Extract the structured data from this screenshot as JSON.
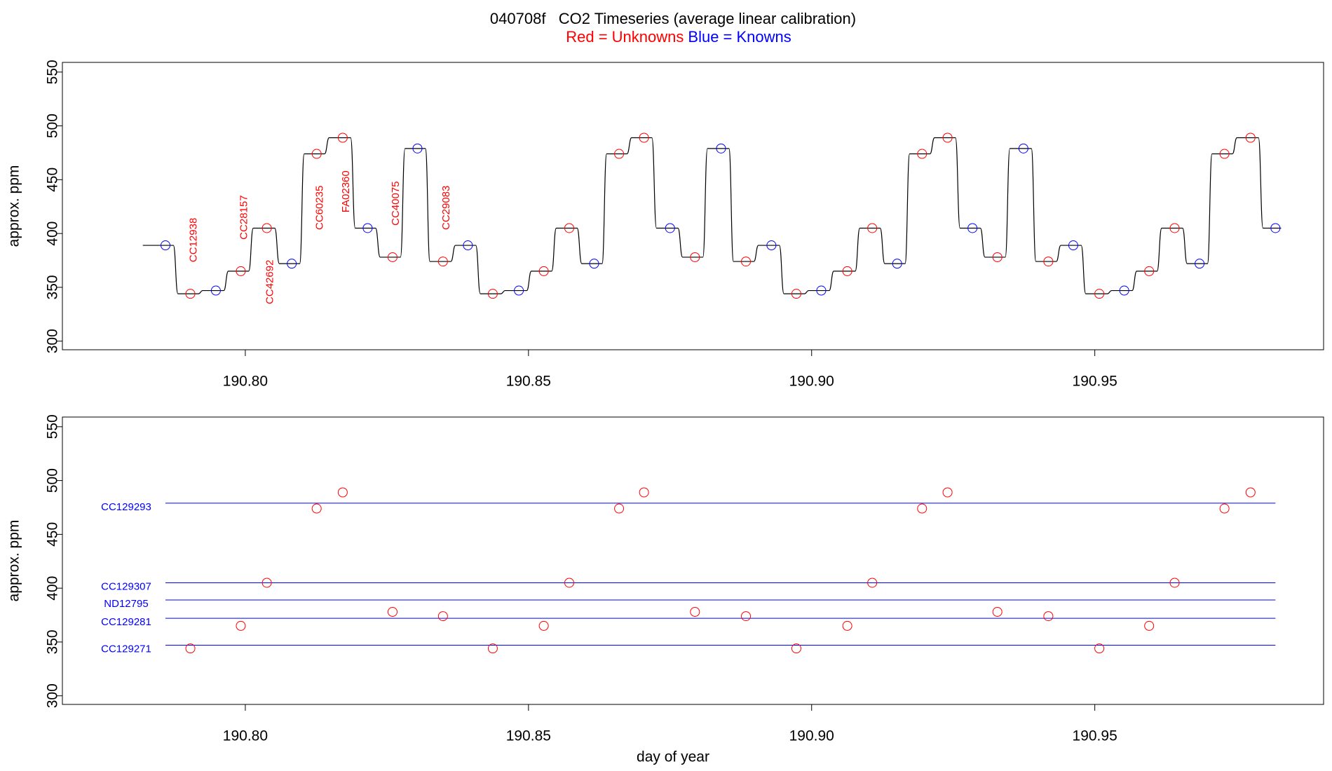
{
  "chart_data": [
    {
      "type": "line",
      "title": "040708f   CO2 Timeseries (average linear calibration)",
      "subtitle": [
        {
          "text": "Red = Unknowns",
          "color": "#ff0000"
        },
        {
          "text": "Blue = Knowns",
          "color": "#0000ff"
        }
      ],
      "y_label": "approx. ppm",
      "xlim": [
        190.7677,
        190.9904
      ],
      "ylim": [
        292,
        559
      ],
      "xticks": [
        {
          "value": 190.8,
          "label": "190.80"
        },
        190.85,
        {
          "value": 190.9,
          "label": "190.90"
        },
        190.95
      ],
      "yticks": [
        300,
        350,
        400,
        450,
        500,
        550
      ],
      "series": [
        {
          "mode": "line",
          "color": "#000000",
          "x": [
            190.7819,
            190.7873,
            190.7881,
            190.7917,
            190.7925,
            190.7962,
            190.797,
            190.8006,
            190.8014,
            190.8052,
            190.806,
            190.8096,
            190.8104,
            190.814,
            190.8148,
            190.8186,
            190.8194,
            190.823,
            190.8238,
            190.8274,
            190.8282,
            190.8318,
            190.8326,
            190.8363,
            190.8371,
            190.8407,
            190.8415,
            190.8451,
            190.8459,
            190.8497,
            190.8505,
            190.8541,
            190.8549,
            190.8586,
            190.8594,
            190.863,
            190.8638,
            190.8674,
            190.8682,
            190.8718,
            190.8726,
            190.8764,
            190.8772,
            190.8808,
            190.8816,
            190.8854,
            190.8862,
            190.8898,
            190.8906,
            190.8943,
            190.8951,
            190.8987,
            190.8995,
            190.9031,
            190.9039,
            190.9077,
            190.9085,
            190.9121,
            190.9129,
            190.9165,
            190.9173,
            190.9209,
            190.9217,
            190.9254,
            190.9262,
            190.9298,
            190.9306,
            190.9342,
            190.935,
            190.9388,
            190.9396,
            190.9432,
            190.944,
            190.9476,
            190.9484,
            190.9522,
            190.953,
            190.9566,
            190.9574,
            190.961,
            190.9618,
            190.9655,
            190.9663,
            190.9699,
            190.9707,
            190.9743,
            190.9751,
            190.9789,
            190.9797,
            190.9829
          ],
          "y": [
            389,
            389,
            344,
            344,
            347,
            347,
            365,
            365,
            405,
            405,
            372,
            372,
            474,
            474,
            489,
            489,
            405,
            405,
            378,
            378,
            479,
            479,
            374,
            374,
            389,
            389,
            344,
            344,
            347,
            347,
            365,
            365,
            405,
            405,
            372,
            372,
            474,
            474,
            489,
            489,
            405,
            405,
            378,
            378,
            479,
            479,
            374,
            374,
            389,
            389,
            344,
            344,
            347,
            347,
            365,
            365,
            405,
            405,
            372,
            372,
            474,
            474,
            489,
            489,
            405,
            405,
            378,
            378,
            479,
            479,
            374,
            374,
            389,
            389,
            344,
            344,
            347,
            347,
            365,
            365,
            405,
            405,
            372,
            372,
            474,
            474,
            489,
            489,
            405,
            405
          ]
        },
        {
          "mode": "points",
          "color": "#0000ff",
          "x": [
            190.7859,
            190.7948,
            190.8082,
            190.8216,
            190.8304,
            190.8393,
            190.8483,
            190.8616,
            190.875,
            190.884,
            190.8929,
            190.9017,
            190.9151,
            190.9284,
            190.9374,
            190.9462,
            190.9552,
            190.9685,
            190.9819
          ],
          "y": [
            389,
            347,
            372,
            405,
            479,
            389,
            347,
            372,
            405,
            479,
            389,
            347,
            372,
            405,
            479,
            389,
            347,
            372,
            405
          ]
        },
        {
          "mode": "points",
          "color": "#ff0000",
          "x": [
            190.7903,
            190.7992,
            190.8038,
            190.8126,
            190.8172,
            190.826,
            190.8349,
            190.8437,
            190.8527,
            190.8572,
            190.866,
            190.8704,
            190.8794,
            190.8884,
            190.8973,
            190.9063,
            190.9107,
            190.9195,
            190.924,
            190.9328,
            190.9418,
            190.9508,
            190.9596,
            190.9641,
            190.9729,
            190.9775
          ],
          "y": [
            344,
            365,
            405,
            474,
            489,
            378,
            374,
            344,
            365,
            405,
            474,
            489,
            378,
            374,
            344,
            365,
            405,
            474,
            489,
            378,
            374,
            344,
            365,
            405,
            474,
            489
          ],
          "labels": [
            "CC12938",
            "CC28157",
            "CC42692",
            "CC60235",
            "FA02360",
            "CC40075",
            "CC29083",
            null,
            null,
            null,
            null,
            null,
            null,
            null,
            null,
            null,
            null,
            null,
            null,
            null,
            null,
            null,
            null,
            null,
            null,
            null
          ]
        }
      ]
    },
    {
      "type": "scatter",
      "x_label": "day of year",
      "y_label": "approx. ppm",
      "xlim": [
        190.7677,
        190.9904
      ],
      "ylim": [
        292,
        559
      ],
      "xticks": [
        {
          "value": 190.8,
          "label": "190.80"
        },
        190.85,
        {
          "value": 190.9,
          "label": "190.90"
        },
        190.95
      ],
      "yticks": [
        300,
        350,
        400,
        450,
        500,
        550
      ],
      "series": [
        {
          "mode": "points",
          "color": "#ff0000",
          "x": [
            190.7903,
            190.7992,
            190.8038,
            190.8126,
            190.8172,
            190.826,
            190.8349,
            190.8437,
            190.8527,
            190.8572,
            190.866,
            190.8704,
            190.8794,
            190.8884,
            190.8973,
            190.9063,
            190.9107,
            190.9195,
            190.924,
            190.9328,
            190.9418,
            190.9508,
            190.9596,
            190.9641,
            190.9729,
            190.9775
          ],
          "y": [
            344,
            365,
            405,
            474,
            489,
            378,
            374,
            344,
            365,
            405,
            474,
            489,
            378,
            374,
            344,
            365,
            405,
            474,
            489,
            378,
            374,
            344,
            365,
            405,
            474,
            489
          ]
        }
      ],
      "reference_lines": [
        {
          "name": "CC129293",
          "value": 479,
          "x": [
            190.7859,
            190.9819
          ],
          "color": "#0000ff"
        },
        {
          "name": "CC129307",
          "value": 405,
          "x": [
            190.7859,
            190.9819
          ],
          "color": "#0000ff"
        },
        {
          "name": "ND12795",
          "value": 389,
          "x": [
            190.7859,
            190.9819
          ],
          "color": "#0000ff"
        },
        {
          "name": "CC129281",
          "value": 372,
          "x": [
            190.7859,
            190.9819
          ],
          "color": "#0000ff"
        },
        {
          "name": "CC129271",
          "value": 347,
          "x": [
            190.7859,
            190.9819
          ],
          "color": "#0000ff"
        }
      ]
    }
  ]
}
